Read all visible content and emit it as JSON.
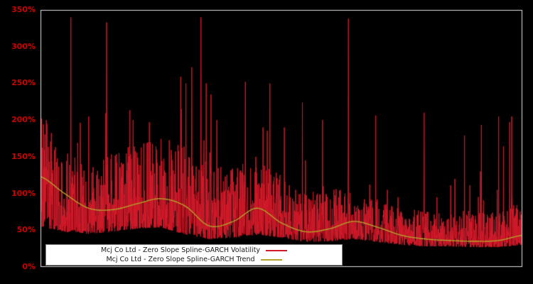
{
  "page": {
    "background": "#000000"
  },
  "chart_data": {
    "type": "line",
    "title": "",
    "xlabel": "",
    "ylabel": "",
    "background": "#000000",
    "plot_border_color": "#e0e0e0",
    "axis_label_color": "#cc0000",
    "grid": false,
    "ylim": [
      0,
      350
    ],
    "ytick_values": [
      0,
      50,
      100,
      150,
      200,
      250,
      300,
      350
    ],
    "ytick_labels": [
      "0%",
      "50%",
      "100%",
      "150%",
      "200%",
      "250%",
      "300%",
      "350%"
    ],
    "legend": {
      "position": "bottom-center",
      "background": "#ffffff",
      "entries": [
        {
          "label": "Mcj Co Ltd - Zero Slope Spline-GARCH Volatility",
          "color": "#d21a2a"
        },
        {
          "label": "Mcj Co Ltd - Zero Slope Spline-GARCH Trend",
          "color": "#b3a229"
        }
      ]
    },
    "series": [
      {
        "name": "Mcj Co Ltd - Zero Slope Spline-GARCH Volatility",
        "type": "noisy-line",
        "color": "#d21a2a",
        "n_points": 2400,
        "seed": 91,
        "envelope_t": [
          0,
          0.05,
          0.1,
          0.15,
          0.2,
          0.25,
          0.3,
          0.35,
          0.4,
          0.45,
          0.5,
          0.55,
          0.6,
          0.65,
          0.7,
          0.75,
          0.8,
          0.85,
          0.9,
          0.95,
          1
        ],
        "band_low_pct": [
          55,
          48,
          45,
          48,
          52,
          54,
          44,
          38,
          40,
          44,
          40,
          34,
          35,
          38,
          34,
          30,
          28,
          28,
          27,
          27,
          30
        ],
        "band_high_pct": [
          205,
          160,
          135,
          155,
          170,
          178,
          165,
          140,
          135,
          150,
          125,
          100,
          110,
          100,
          92,
          80,
          76,
          72,
          82,
          72,
          95
        ],
        "spikes": [
          [
            0.012,
            200
          ],
          [
            0.063,
            340
          ],
          [
            0.1,
            205
          ],
          [
            0.137,
            333
          ],
          [
            0.192,
            200
          ],
          [
            0.226,
            197
          ],
          [
            0.292,
            215
          ],
          [
            0.302,
            250
          ],
          [
            0.314,
            272
          ],
          [
            0.333,
            340
          ],
          [
            0.344,
            250
          ],
          [
            0.354,
            235
          ],
          [
            0.366,
            200
          ],
          [
            0.425,
            252
          ],
          [
            0.447,
            150
          ],
          [
            0.462,
            190
          ],
          [
            0.476,
            250
          ],
          [
            0.506,
            190
          ],
          [
            0.55,
            145
          ],
          [
            0.587,
            110
          ],
          [
            0.639,
            338
          ],
          [
            0.683,
            112
          ],
          [
            0.72,
            105
          ],
          [
            0.742,
            95
          ],
          [
            0.796,
            210
          ],
          [
            0.823,
            95
          ],
          [
            0.86,
            120
          ],
          [
            0.913,
            130
          ],
          [
            0.948,
            105
          ],
          [
            0.978,
            205
          ]
        ]
      },
      {
        "name": "Mcj Co Ltd - Zero Slope Spline-GARCH Trend",
        "type": "smooth-line",
        "color": "#b3a229",
        "points_t": [
          0,
          0.05,
          0.1,
          0.15,
          0.2,
          0.25,
          0.3,
          0.35,
          0.4,
          0.45,
          0.5,
          0.55,
          0.6,
          0.65,
          0.7,
          0.75,
          0.8,
          0.85,
          0.9,
          0.95,
          1
        ],
        "points_pct": [
          123,
          100,
          80,
          78,
          86,
          93,
          83,
          56,
          62,
          80,
          60,
          48,
          52,
          62,
          54,
          43,
          38,
          36,
          35,
          36,
          43
        ]
      }
    ]
  }
}
